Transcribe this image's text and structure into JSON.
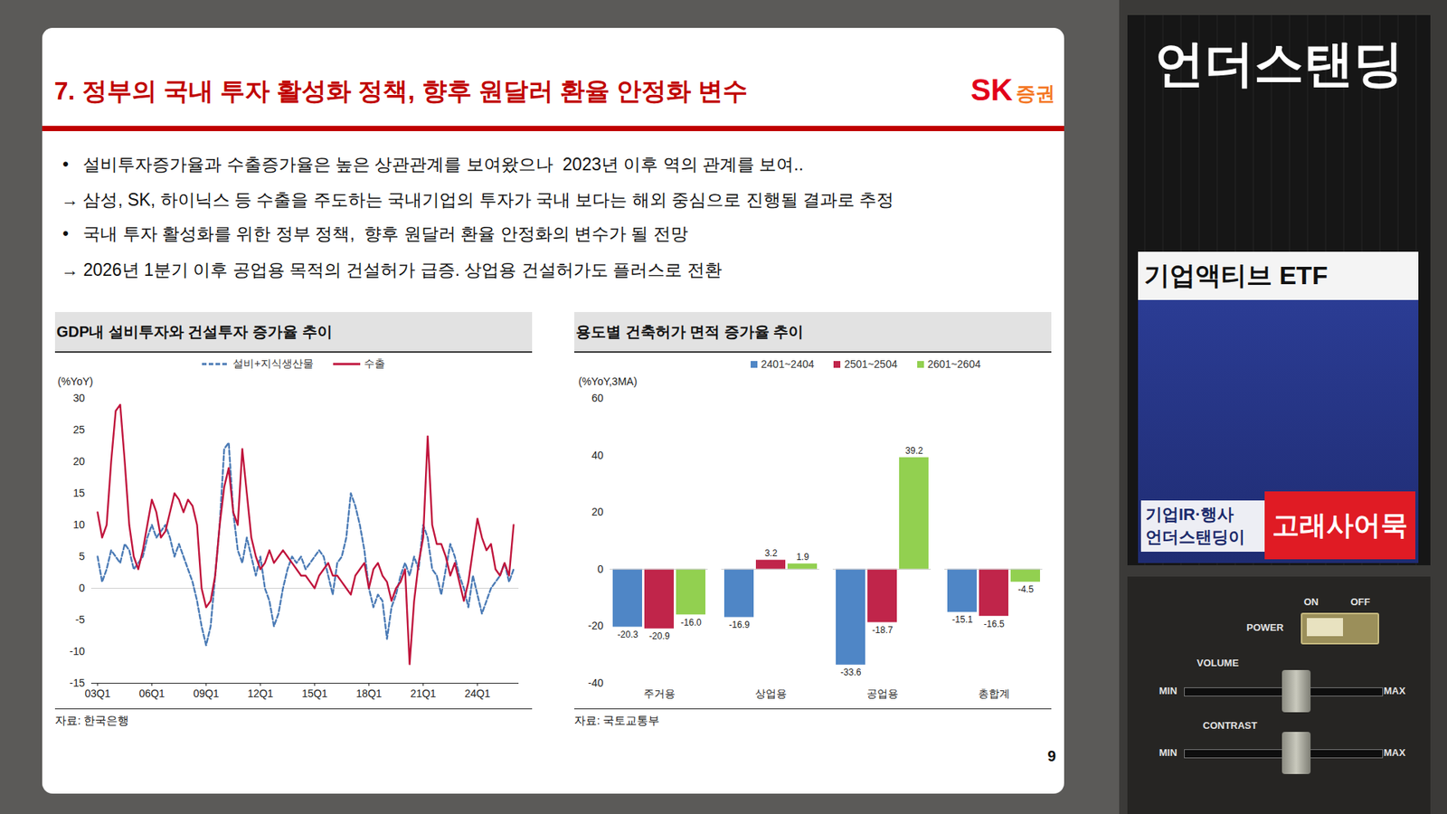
{
  "slide": {
    "title": "7. 정부의 국내 투자 활성화 정책, 향후 원달러 환율 안정화 변수",
    "logo": {
      "brand": "SK",
      "text": "증권"
    },
    "lines": [
      "•   설비투자증가율과 수출증가율은 높은 상관관계를 보여왔으나  2023년 이후 역의 관계를 보여..",
      "→ 삼성, SK, 하이닉스 등 수출을 주도하는 국내기업의 투자가 국내 보다는 해외 중심으로 진행될 결과로 추정",
      "•   국내 투자 활성화를 위한 정부 정책,  향후 원달러 환율 안정화의 변수가 될 전망",
      "→ 2026년 1분기 이후 공업용 목적의 건설허가 급증. 상업용 건설허가도 플러스로 전환"
    ],
    "page_number": "9"
  },
  "side_panel": {
    "brand": "언더스탠딩",
    "video_title": "기업액티브 ETF",
    "caption_left": [
      "기업IR·행사",
      "언더스탠딩이"
    ],
    "caption_right": "고래사어묵",
    "device": {
      "power": "POWER",
      "on": "ON",
      "off": "OFF",
      "volume": "VOLUME",
      "contrast": "CONTRAST",
      "min": "MIN",
      "max": "MAX"
    }
  },
  "chart_data": [
    {
      "type": "line",
      "title": "GDP내 설비투자와 건설투자 증가율 추이",
      "y_label": "(%YoY)",
      "source": "자료: 한국은행",
      "legend": "top",
      "categories": [
        "03Q1",
        null,
        null,
        null,
        null,
        null,
        null,
        null,
        null,
        null,
        null,
        null,
        "06Q1",
        null,
        null,
        null,
        null,
        null,
        null,
        null,
        null,
        null,
        null,
        null,
        "09Q1",
        null,
        null,
        null,
        null,
        null,
        null,
        null,
        null,
        null,
        null,
        null,
        "12Q1",
        null,
        null,
        null,
        null,
        null,
        null,
        null,
        null,
        null,
        null,
        null,
        "15Q1",
        null,
        null,
        null,
        null,
        null,
        null,
        null,
        null,
        null,
        null,
        null,
        "18Q1",
        null,
        null,
        null,
        null,
        null,
        null,
        null,
        null,
        null,
        null,
        null,
        "21Q1",
        null,
        null,
        null,
        null,
        null,
        null,
        null,
        null,
        null,
        null,
        null,
        "24Q1",
        null,
        null,
        null,
        null,
        null,
        null,
        null,
        null
      ],
      "series": [
        {
          "name": "설비+지식생산물",
          "color": "#4a7ab5",
          "line_style": "dashed",
          "values": [
            5,
            1,
            3,
            6,
            5,
            4,
            7,
            6,
            3,
            4,
            5,
            8,
            10,
            8,
            9,
            10,
            8,
            5,
            7,
            5,
            3,
            1,
            -2,
            -6,
            -9,
            -6,
            2,
            10,
            22,
            23,
            12,
            6,
            4,
            8,
            5,
            2,
            5,
            0,
            -2,
            -6,
            -4,
            0,
            3,
            5,
            4,
            5,
            3,
            4,
            5,
            6,
            5,
            2,
            -1,
            4,
            5,
            8,
            15,
            13,
            10,
            6,
            0,
            -3,
            -1,
            -2,
            -8,
            -3,
            -1,
            2,
            4,
            2,
            5,
            3,
            10,
            8,
            3,
            2,
            -1,
            3,
            7,
            5,
            2,
            0,
            -3,
            2,
            -1,
            -4,
            -2,
            0,
            1,
            2,
            4,
            1,
            3
          ]
        },
        {
          "name": "수출",
          "color": "#c0143c",
          "line_style": "solid",
          "values": [
            12,
            8,
            10,
            20,
            28,
            29,
            20,
            10,
            5,
            3,
            6,
            10,
            14,
            12,
            8,
            9,
            12,
            15,
            14,
            12,
            14,
            13,
            10,
            0,
            -3,
            -2,
            2,
            10,
            16,
            19,
            12,
            10,
            22,
            15,
            8,
            5,
            3,
            4,
            6,
            4,
            5,
            6,
            5,
            4,
            3,
            2,
            2,
            1,
            0,
            2,
            3,
            4,
            2,
            2,
            1,
            0,
            -1,
            2,
            3,
            4,
            0,
            3,
            4,
            2,
            1,
            -2,
            0,
            1,
            3,
            -12,
            -2,
            4,
            8,
            24,
            10,
            7,
            7,
            5,
            2,
            4,
            1,
            -2,
            1,
            6,
            11,
            8,
            6,
            7,
            3,
            2,
            4,
            2,
            10
          ]
        }
      ],
      "ylim": [
        -15,
        30
      ],
      "yticks": [
        -15,
        -10,
        -5,
        0,
        5,
        10,
        15,
        20,
        25,
        30
      ]
    },
    {
      "type": "bar",
      "title": "용도별 건축허가 면적 증가율 추이",
      "y_label": "(%YoY,3MA)",
      "source": "자료: 국토교통부",
      "legend": "top",
      "data_labels": true,
      "categories": [
        "주거용",
        "상업용",
        "공업용",
        "총합계"
      ],
      "series": [
        {
          "name": "2401~2404",
          "color": "#4f86c6",
          "values": [
            -20.3,
            -16.9,
            -33.6,
            -15.1
          ],
          "value_labels": [
            "-20.3",
            "-16.9",
            "-33.6",
            "-15.1"
          ]
        },
        {
          "name": "2501~2504",
          "color": "#c0254a",
          "values": [
            -20.9,
            3.2,
            -18.7,
            -16.5
          ],
          "value_labels": [
            "-20.9",
            "3.2",
            "-18.7",
            "-16.5"
          ]
        },
        {
          "name": "2601~2604",
          "color": "#92d050",
          "values": [
            -16.0,
            1.9,
            39.2,
            -4.5
          ],
          "value_labels": [
            "-16.0",
            "1.9",
            "39.2",
            "-4.5"
          ]
        }
      ],
      "ylim": [
        -40,
        60
      ],
      "yticks": [
        -40,
        -20,
        0,
        20,
        40,
        60
      ]
    }
  ]
}
